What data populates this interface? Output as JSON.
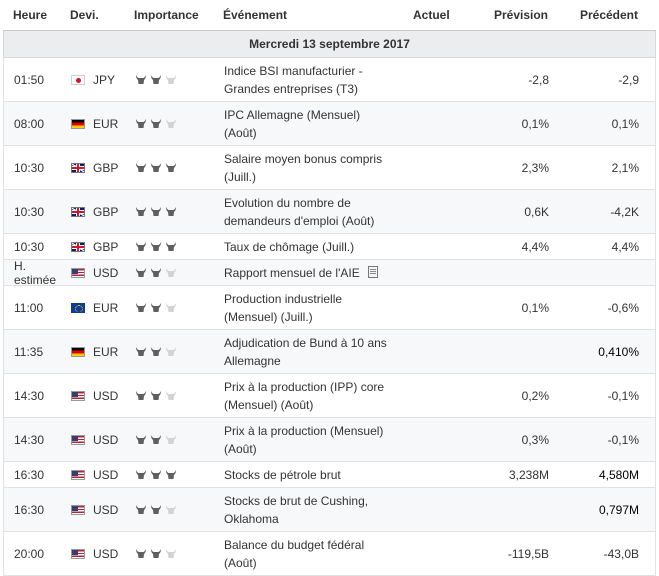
{
  "header": {
    "time": "Heure",
    "currency": "Devi.",
    "importance": "Importance",
    "event": "Événement",
    "actual": "Actuel",
    "forecast": "Prévision",
    "previous": "Précédent"
  },
  "day_label": "Mercredi 13 septembre 2017",
  "colors": {
    "bull_active": "#5f5f5f",
    "bull_inactive": "#d3d3d3",
    "day_bg": "#ecedef"
  },
  "events": [
    {
      "time": "01:50",
      "flag": "jp",
      "currency": "JPY",
      "importance": 2,
      "event_line1": "Indice BSI manufacturier -",
      "event_line2": "Grandes entreprises (T3)",
      "actual": "",
      "forecast": "-2,8",
      "previous": "-2,9",
      "previous_bold": false
    },
    {
      "time": "08:00",
      "flag": "de",
      "currency": "EUR",
      "importance": 2,
      "event_line1": "IPC Allemagne (Mensuel)",
      "event_line2": "(Août)",
      "actual": "",
      "forecast": "0,1%",
      "previous": "0,1%",
      "previous_bold": false
    },
    {
      "time": "10:30",
      "flag": "gb",
      "currency": "GBP",
      "importance": 3,
      "event_line1": "Salaire moyen bonus compris",
      "event_line2": "(Juill.)",
      "actual": "",
      "forecast": "2,3%",
      "previous": "2,1%",
      "previous_bold": false
    },
    {
      "time": "10:30",
      "flag": "gb",
      "currency": "GBP",
      "importance": 3,
      "event_line1": "Evolution du nombre de",
      "event_line2": "demandeurs d'emploi (Août)",
      "actual": "",
      "forecast": "0,6K",
      "previous": "-4,2K",
      "previous_bold": false
    },
    {
      "time": "10:30",
      "flag": "gb",
      "currency": "GBP",
      "importance": 3,
      "event_line1": "Taux de chômage (Juill.)",
      "event_line2": "",
      "actual": "",
      "forecast": "4,4%",
      "previous": "4,4%",
      "previous_bold": false
    },
    {
      "time": "H. estimée",
      "flag": "us",
      "currency": "USD",
      "importance": 2,
      "event_line1": "Rapport mensuel de l'AIE",
      "event_line2": "",
      "doc_icon": true,
      "actual": "",
      "forecast": "",
      "previous": "",
      "previous_bold": false
    },
    {
      "time": "11:00",
      "flag": "eu",
      "currency": "EUR",
      "importance": 2,
      "event_line1": "Production industrielle",
      "event_line2": "(Mensuel) (Juill.)",
      "actual": "",
      "forecast": "0,1%",
      "previous": "-0,6%",
      "previous_bold": false
    },
    {
      "time": "11:35",
      "flag": "de",
      "currency": "EUR",
      "importance": 2,
      "event_line1": "Adjudication de Bund à 10 ans",
      "event_line2": "Allemagne",
      "actual": "",
      "forecast": "",
      "previous": "0,410%",
      "previous_bold": true
    },
    {
      "time": "14:30",
      "flag": "us",
      "currency": "USD",
      "importance": 2,
      "event_line1": "Prix à la production (IPP) core",
      "event_line2": "(Mensuel) (Août)",
      "actual": "",
      "forecast": "0,2%",
      "previous": "-0,1%",
      "previous_bold": false
    },
    {
      "time": "14:30",
      "flag": "us",
      "currency": "USD",
      "importance": 2,
      "event_line1": "Prix à la production (Mensuel)",
      "event_line2": "(Août)",
      "actual": "",
      "forecast": "0,3%",
      "previous": "-0,1%",
      "previous_bold": false
    },
    {
      "time": "16:30",
      "flag": "us",
      "currency": "USD",
      "importance": 3,
      "event_line1": "Stocks de pétrole brut",
      "event_line2": "",
      "actual": "",
      "forecast": "3,238M",
      "previous": "4,580M",
      "previous_bold": true
    },
    {
      "time": "16:30",
      "flag": "us",
      "currency": "USD",
      "importance": 2,
      "event_line1": "Stocks de brut de Cushing,",
      "event_line2": "Oklahoma",
      "actual": "",
      "forecast": "",
      "previous": "0,797M",
      "previous_bold": true
    },
    {
      "time": "20:00",
      "flag": "us",
      "currency": "USD",
      "importance": 2,
      "event_line1": "Balance du budget fédéral",
      "event_line2": "(Août)",
      "actual": "",
      "forecast": "-119,5B",
      "previous": "-43,0B",
      "previous_bold": false
    }
  ]
}
